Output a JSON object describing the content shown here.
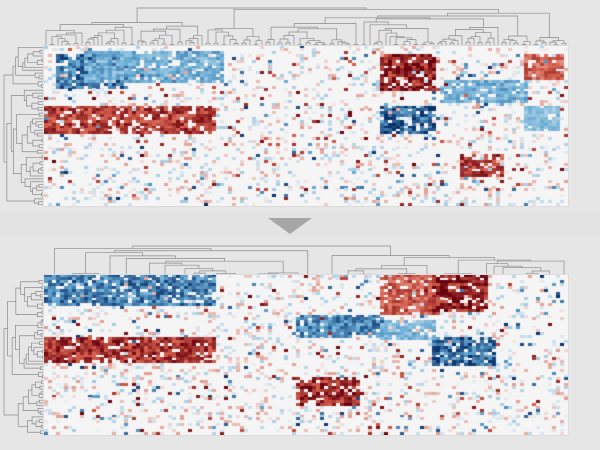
{
  "figure": {
    "panels": [
      {
        "id": "top",
        "rows": 56,
        "cols": 131,
        "row_dendrogram": true,
        "col_dendrogram": true,
        "blocks": [
          {
            "rows": [
              3,
              14
            ],
            "cols": [
              3,
              20
            ],
            "sign": -1,
            "strength": 0.85
          },
          {
            "rows": [
              2,
              12
            ],
            "cols": [
              10,
              44
            ],
            "sign": -1,
            "strength": 0.55
          },
          {
            "rows": [
              21,
              30
            ],
            "cols": [
              0,
              42
            ],
            "sign": 1,
            "strength": 0.8
          },
          {
            "rows": [
              3,
              15
            ],
            "cols": [
              84,
              97
            ],
            "sign": 1,
            "strength": 0.95
          },
          {
            "rows": [
              21,
              30
            ],
            "cols": [
              84,
              97
            ],
            "sign": -1,
            "strength": 0.95
          },
          {
            "rows": [
              12,
              19
            ],
            "cols": [
              99,
              120
            ],
            "sign": -1,
            "strength": 0.55
          },
          {
            "rows": [
              38,
              45
            ],
            "cols": [
              104,
              114
            ],
            "sign": 1,
            "strength": 0.8
          },
          {
            "rows": [
              3,
              11
            ],
            "cols": [
              120,
              129
            ],
            "sign": 1,
            "strength": 0.6
          },
          {
            "rows": [
              21,
              29
            ],
            "cols": [
              120,
              128
            ],
            "sign": -1,
            "strength": 0.45
          }
        ]
      },
      {
        "id": "bottom",
        "rows": 56,
        "cols": 131,
        "row_dendrogram": true,
        "col_dendrogram": true,
        "blocks": [
          {
            "rows": [
              0,
              10
            ],
            "cols": [
              0,
              42
            ],
            "sign": -1,
            "strength": 0.8
          },
          {
            "rows": [
              22,
              30
            ],
            "cols": [
              0,
              42
            ],
            "sign": 1,
            "strength": 0.85
          },
          {
            "rows": [
              14,
              21
            ],
            "cols": [
              63,
              84
            ],
            "sign": -1,
            "strength": 0.75
          },
          {
            "rows": [
              36,
              45
            ],
            "cols": [
              63,
              78
            ],
            "sign": 1,
            "strength": 0.9
          },
          {
            "rows": [
              0,
              13
            ],
            "cols": [
              84,
              98
            ],
            "sign": 1,
            "strength": 0.65
          },
          {
            "rows": [
              0,
              12
            ],
            "cols": [
              97,
              110
            ],
            "sign": 1,
            "strength": 0.95
          },
          {
            "rows": [
              22,
              31
            ],
            "cols": [
              97,
              112
            ],
            "sign": -1,
            "strength": 0.9
          },
          {
            "rows": [
              16,
              22
            ],
            "cols": [
              84,
              97
            ],
            "sign": -1,
            "strength": 0.5
          }
        ]
      }
    ],
    "colors": {
      "negative": "#08306b",
      "neutral": "#f5f5f5",
      "positive": "#67000d",
      "dendrogram": "#8a8a8a",
      "arrow": "#a6a6a6"
    }
  }
}
